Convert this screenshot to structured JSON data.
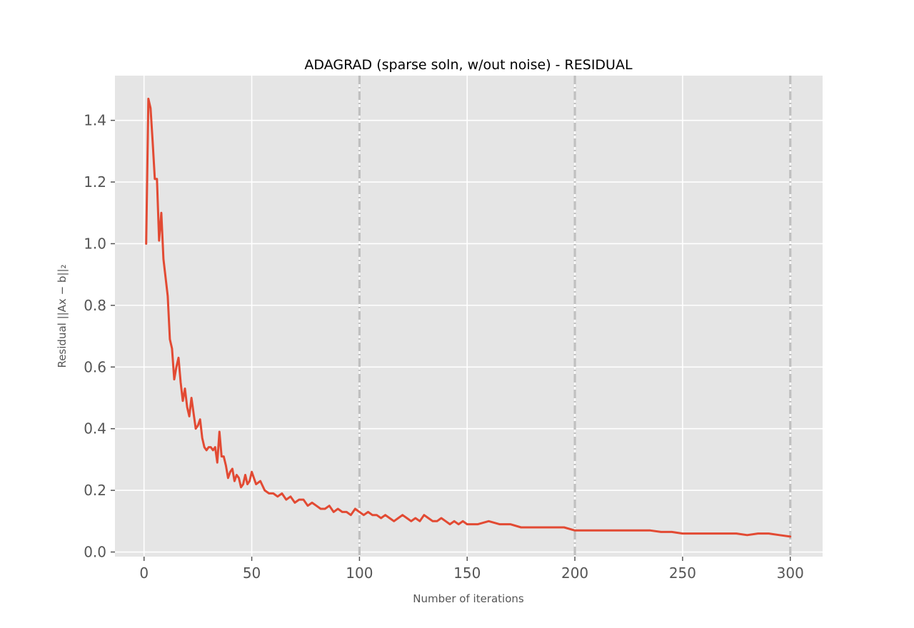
{
  "chart_data": {
    "type": "line",
    "title": "ADAGRAD (sparse soln, w/out noise) - RESIDUAL",
    "xlabel": "Number of iterations",
    "ylabel": "Residual ||Ax − b||₂",
    "xlim": [
      -13.5,
      315
    ],
    "ylim": [
      -0.015,
      1.545
    ],
    "xticks": [
      0,
      50,
      100,
      150,
      200,
      250,
      300
    ],
    "yticks": [
      0.0,
      0.2,
      0.4,
      0.6,
      0.8,
      1.0,
      1.2,
      1.4
    ],
    "xtick_labels": [
      "0",
      "50",
      "100",
      "150",
      "200",
      "250",
      "300"
    ],
    "ytick_labels": [
      "0.0",
      "0.2",
      "0.4",
      "0.6",
      "0.8",
      "1.0",
      "1.2",
      "1.4"
    ],
    "grid": true,
    "background": "#e5e5e5",
    "vlines": [
      100,
      200,
      300
    ],
    "vline_color": "#c0c0c0",
    "series": [
      {
        "color": "#e24a33",
        "x": [
          1,
          2,
          3,
          4,
          5,
          6,
          7,
          8,
          9,
          10,
          11,
          12,
          13,
          14,
          15,
          16,
          17,
          18,
          19,
          20,
          21,
          22,
          23,
          24,
          25,
          26,
          27,
          28,
          29,
          30,
          31,
          32,
          33,
          34,
          35,
          36,
          37,
          38,
          39,
          40,
          41,
          42,
          43,
          44,
          45,
          46,
          47,
          48,
          49,
          50,
          52,
          54,
          56,
          58,
          60,
          62,
          64,
          66,
          68,
          70,
          72,
          74,
          76,
          78,
          80,
          82,
          84,
          86,
          88,
          90,
          92,
          94,
          96,
          98,
          100,
          102,
          104,
          106,
          108,
          110,
          112,
          114,
          116,
          118,
          120,
          122,
          124,
          126,
          128,
          130,
          132,
          134,
          136,
          138,
          140,
          142,
          144,
          146,
          148,
          150,
          155,
          160,
          165,
          170,
          175,
          180,
          185,
          190,
          195,
          200,
          205,
          210,
          215,
          220,
          225,
          230,
          235,
          240,
          245,
          250,
          255,
          260,
          265,
          270,
          275,
          280,
          285,
          290,
          295,
          300
        ],
        "y": [
          1.0,
          1.47,
          1.44,
          1.33,
          1.21,
          1.21,
          1.01,
          1.1,
          0.95,
          0.89,
          0.83,
          0.69,
          0.66,
          0.56,
          0.6,
          0.63,
          0.55,
          0.49,
          0.53,
          0.47,
          0.44,
          0.5,
          0.45,
          0.4,
          0.41,
          0.43,
          0.37,
          0.34,
          0.33,
          0.34,
          0.34,
          0.33,
          0.34,
          0.29,
          0.39,
          0.31,
          0.31,
          0.28,
          0.24,
          0.26,
          0.27,
          0.23,
          0.25,
          0.24,
          0.21,
          0.22,
          0.25,
          0.22,
          0.23,
          0.26,
          0.22,
          0.23,
          0.2,
          0.19,
          0.19,
          0.18,
          0.19,
          0.17,
          0.18,
          0.16,
          0.17,
          0.17,
          0.15,
          0.16,
          0.15,
          0.14,
          0.14,
          0.15,
          0.13,
          0.14,
          0.13,
          0.13,
          0.12,
          0.14,
          0.13,
          0.12,
          0.13,
          0.12,
          0.12,
          0.11,
          0.12,
          0.11,
          0.1,
          0.11,
          0.12,
          0.11,
          0.1,
          0.11,
          0.1,
          0.12,
          0.11,
          0.1,
          0.1,
          0.11,
          0.1,
          0.09,
          0.1,
          0.09,
          0.1,
          0.09,
          0.09,
          0.1,
          0.09,
          0.09,
          0.08,
          0.08,
          0.08,
          0.08,
          0.08,
          0.07,
          0.07,
          0.07,
          0.07,
          0.07,
          0.07,
          0.07,
          0.07,
          0.065,
          0.065,
          0.06,
          0.06,
          0.06,
          0.06,
          0.06,
          0.06,
          0.055,
          0.06,
          0.06,
          0.055,
          0.05
        ]
      }
    ]
  }
}
